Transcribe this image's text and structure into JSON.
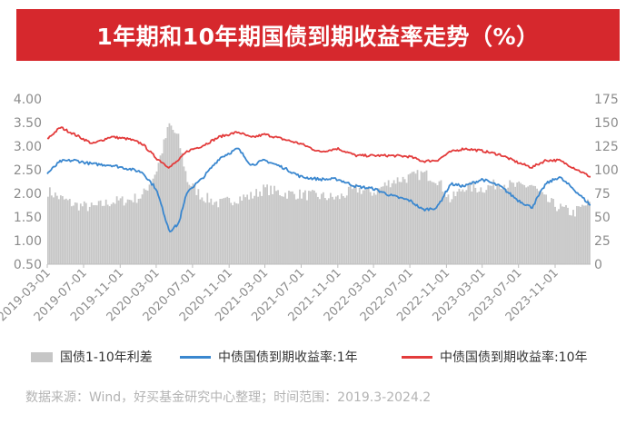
{
  "title": "1年期和10年期国债到期收益率走势（%）",
  "source": "数据来源：Wind，好买基金研究中心整理；时间范围：2019.3-2024.2",
  "colors": {
    "title_bg": "#d6282d",
    "spread": "#c6c6c6",
    "y1": "#3a87cf",
    "y10": "#e33b3b",
    "axis_text": "#8c8c8c"
  },
  "chart_data": {
    "type": "line",
    "x_range": [
      "2019-03-01",
      "2024-02-28"
    ],
    "x_tick_labels": [
      "2019-03-01",
      "2019-07-01",
      "2019-11-01",
      "2020-03-01",
      "2020-07-01",
      "2020-11-01",
      "2021-03-01",
      "2021-07-01",
      "2021-11-01",
      "2022-03-01",
      "2022-07-01",
      "2022-11-01",
      "2023-03-01",
      "2023-07-01",
      "2023-11-01"
    ],
    "y_left": {
      "ylim": [
        0.5,
        4.0
      ],
      "ticks": [
        "0.50",
        "1.00",
        "1.50",
        "2.00",
        "2.50",
        "3.00",
        "3.50",
        "4.00"
      ]
    },
    "y_right": {
      "ylim": [
        0,
        175
      ],
      "ticks": [
        "0",
        "25",
        "50",
        "75",
        "100",
        "125",
        "150",
        "175"
      ]
    },
    "grid": false,
    "legend_position": "bottom",
    "series": [
      {
        "name": "国债1-10年利差",
        "type": "area",
        "axis": "right",
        "x": [
          "2019-03-01",
          "2019-04-15",
          "2019-06-01",
          "2019-08-01",
          "2019-10-01",
          "2019-12-01",
          "2020-01-15",
          "2020-03-01",
          "2020-04-15",
          "2020-05-15",
          "2020-06-15",
          "2020-08-01",
          "2020-10-01",
          "2020-12-01",
          "2021-01-15",
          "2021-03-01",
          "2021-05-01",
          "2021-07-01",
          "2021-09-01",
          "2021-11-01",
          "2022-01-01",
          "2022-03-01",
          "2022-05-01",
          "2022-07-01",
          "2022-08-15",
          "2022-10-01",
          "2022-11-15",
          "2023-01-01",
          "2023-03-01",
          "2023-05-01",
          "2023-07-01",
          "2023-08-15",
          "2023-10-01",
          "2023-11-15",
          "2024-01-01",
          "2024-02-28"
        ],
        "values": [
          78,
          70,
          63,
          60,
          66,
          68,
          72,
          98,
          148,
          133,
          88,
          72,
          64,
          70,
          72,
          80,
          75,
          74,
          72,
          70,
          80,
          76,
          88,
          92,
          96,
          90,
          68,
          82,
          80,
          86,
          82,
          84,
          68,
          60,
          54,
          66
        ]
      },
      {
        "name": "中债国债到期收益率:1年",
        "type": "line",
        "axis": "left",
        "x": [
          "2019-03-01",
          "2019-04-15",
          "2019-06-01",
          "2019-08-01",
          "2019-10-01",
          "2019-12-01",
          "2020-01-15",
          "2020-03-01",
          "2020-04-15",
          "2020-05-15",
          "2020-06-15",
          "2020-08-01",
          "2020-10-01",
          "2020-12-01",
          "2021-01-15",
          "2021-03-01",
          "2021-05-01",
          "2021-07-01",
          "2021-09-01",
          "2021-11-01",
          "2022-01-01",
          "2022-03-01",
          "2022-05-01",
          "2022-07-01",
          "2022-08-15",
          "2022-10-01",
          "2022-11-15",
          "2023-01-01",
          "2023-03-01",
          "2023-05-01",
          "2023-07-01",
          "2023-08-15",
          "2023-10-01",
          "2023-11-15",
          "2024-01-01",
          "2024-02-28"
        ],
        "values": [
          2.42,
          2.68,
          2.7,
          2.62,
          2.6,
          2.52,
          2.45,
          2.1,
          1.2,
          1.35,
          2.05,
          2.3,
          2.75,
          2.95,
          2.6,
          2.7,
          2.55,
          2.35,
          2.3,
          2.3,
          2.15,
          2.1,
          1.95,
          1.85,
          1.65,
          1.7,
          2.2,
          2.15,
          2.3,
          2.15,
          1.85,
          1.7,
          2.2,
          2.35,
          2.1,
          1.75
        ]
      },
      {
        "name": "中债国债到期收益率:10年",
        "type": "line",
        "axis": "left",
        "x": [
          "2019-03-01",
          "2019-04-15",
          "2019-06-01",
          "2019-08-01",
          "2019-10-01",
          "2019-12-01",
          "2020-01-15",
          "2020-03-01",
          "2020-04-15",
          "2020-05-15",
          "2020-06-15",
          "2020-08-01",
          "2020-10-01",
          "2020-12-01",
          "2021-01-15",
          "2021-03-01",
          "2021-05-01",
          "2021-07-01",
          "2021-09-01",
          "2021-11-01",
          "2022-01-01",
          "2022-03-01",
          "2022-05-01",
          "2022-07-01",
          "2022-08-15",
          "2022-10-01",
          "2022-11-15",
          "2023-01-01",
          "2023-03-01",
          "2023-05-01",
          "2023-07-01",
          "2023-08-15",
          "2023-10-01",
          "2023-11-15",
          "2024-01-01",
          "2024-02-28"
        ],
        "values": [
          3.15,
          3.4,
          3.25,
          3.05,
          3.2,
          3.15,
          3.05,
          2.75,
          2.55,
          2.7,
          2.9,
          3.0,
          3.2,
          3.3,
          3.18,
          3.25,
          3.15,
          3.05,
          2.88,
          2.95,
          2.8,
          2.8,
          2.8,
          2.78,
          2.68,
          2.7,
          2.88,
          2.95,
          2.9,
          2.82,
          2.65,
          2.55,
          2.7,
          2.7,
          2.55,
          2.35
        ]
      }
    ]
  }
}
